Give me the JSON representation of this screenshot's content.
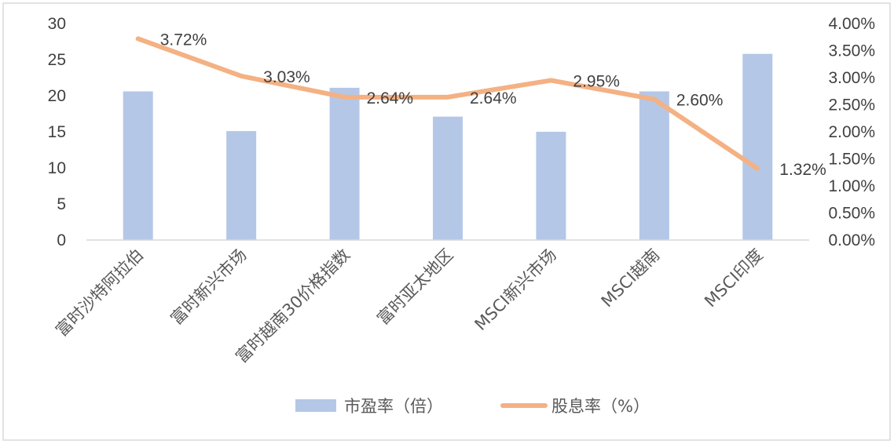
{
  "chart_data": {
    "type": "bar",
    "categories": [
      "富时沙特阿拉伯",
      "富时新兴市场",
      "富时越南30价格指数",
      "富时亚太地区",
      "MSCI新兴市场",
      "MSCI越南",
      "MSCI印度"
    ],
    "series": [
      {
        "name": "市盈率（倍）",
        "type": "bar",
        "axis": "left",
        "color": "#b4c7e7",
        "values": [
          20.6,
          15.1,
          21.1,
          17.1,
          15.0,
          20.6,
          25.8
        ]
      },
      {
        "name": "股息率（%）",
        "type": "line",
        "axis": "right",
        "color": "#f4b183",
        "values": [
          3.72,
          3.03,
          2.64,
          2.64,
          2.95,
          2.6,
          1.32
        ],
        "data_labels": [
          "3.72%",
          "3.03%",
          "2.64%",
          "2.64%",
          "2.95%",
          "2.60%",
          "1.32%"
        ]
      }
    ],
    "y_left": {
      "ylim": [
        0,
        30
      ],
      "ticks": [
        0,
        5,
        10,
        15,
        20,
        25,
        30
      ],
      "tick_labels": [
        "0",
        "5",
        "10",
        "15",
        "20",
        "25",
        "30"
      ]
    },
    "y_right": {
      "ylim": [
        0,
        4
      ],
      "ticks": [
        0,
        0.5,
        1,
        1.5,
        2,
        2.5,
        3,
        3.5,
        4
      ],
      "tick_labels": [
        "0.00%",
        "0.50%",
        "1.00%",
        "1.50%",
        "2.00%",
        "2.50%",
        "3.00%",
        "3.50%",
        "4.00%"
      ]
    },
    "grid": false,
    "legend_position": "bottom"
  }
}
